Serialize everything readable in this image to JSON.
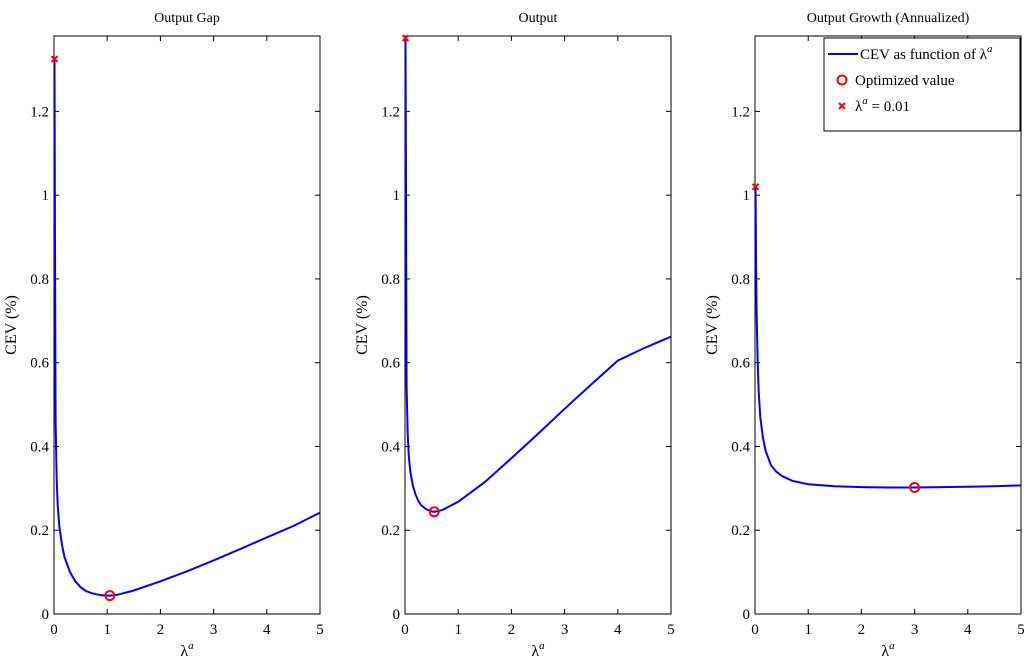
{
  "chart_data": [
    {
      "type": "line",
      "title": "Output Gap",
      "xlabel": "λ",
      "xlabel_sup": "a",
      "ylabel": "CEV (%)",
      "xlim": [
        0,
        5
      ],
      "ylim": [
        0,
        1.38
      ],
      "xticks": [
        "0",
        "1",
        "2",
        "3",
        "4",
        "5"
      ],
      "yticks": [
        "0",
        "0.2",
        "0.4",
        "0.6",
        "0.8",
        "1",
        "1.2"
      ],
      "grid": false,
      "series": [
        {
          "kind": "curve",
          "x": [
            0.01,
            0.02,
            0.03,
            0.05,
            0.07,
            0.1,
            0.15,
            0.2,
            0.3,
            0.4,
            0.5,
            0.6,
            0.7,
            0.8,
            0.9,
            1.0,
            1.05,
            1.2,
            1.5,
            2.0,
            2.5,
            3.0,
            3.5,
            4.0,
            4.5,
            5.0
          ],
          "y": [
            1.325,
            0.8,
            0.46,
            0.32,
            0.26,
            0.21,
            0.165,
            0.135,
            0.1,
            0.078,
            0.064,
            0.055,
            0.05,
            0.047,
            0.045,
            0.044,
            0.044,
            0.046,
            0.056,
            0.078,
            0.102,
            0.128,
            0.155,
            0.183,
            0.21,
            0.242
          ]
        }
      ],
      "markers": [
        {
          "kind": "circle",
          "x": 1.05,
          "y": 0.044
        },
        {
          "kind": "x",
          "x": 0.01,
          "y": 1.325
        }
      ]
    },
    {
      "type": "line",
      "title": "Output",
      "xlabel": "λ",
      "xlabel_sup": "a",
      "ylabel": "CEV (%)",
      "xlim": [
        0,
        5
      ],
      "ylim": [
        0,
        1.38
      ],
      "xticks": [
        "0",
        "1",
        "2",
        "3",
        "4",
        "5"
      ],
      "yticks": [
        "0",
        "0.2",
        "0.4",
        "0.6",
        "0.8",
        "1",
        "1.2"
      ],
      "grid": false,
      "series": [
        {
          "kind": "curve",
          "x": [
            0.01,
            0.02,
            0.03,
            0.05,
            0.07,
            0.1,
            0.15,
            0.2,
            0.25,
            0.3,
            0.4,
            0.5,
            0.55,
            0.7,
            1.0,
            1.5,
            2.0,
            2.5,
            3.0,
            3.5,
            4.0,
            4.5,
            5.0
          ],
          "y": [
            1.375,
            0.95,
            0.54,
            0.43,
            0.38,
            0.34,
            0.305,
            0.285,
            0.27,
            0.26,
            0.25,
            0.245,
            0.244,
            0.248,
            0.268,
            0.315,
            0.372,
            0.43,
            0.49,
            0.548,
            0.605,
            0.635,
            0.662
          ]
        }
      ],
      "markers": [
        {
          "kind": "circle",
          "x": 0.55,
          "y": 0.244
        },
        {
          "kind": "x",
          "x": 0.01,
          "y": 1.375
        }
      ]
    },
    {
      "type": "line",
      "title": "Output Growth (Annualized)",
      "xlabel": "λ",
      "xlabel_sup": "a",
      "ylabel": "CEV (%)",
      "xlim": [
        0,
        5
      ],
      "ylim": [
        0,
        1.38
      ],
      "xticks": [
        "0",
        "1",
        "2",
        "3",
        "4",
        "5"
      ],
      "yticks": [
        "0",
        "0.2",
        "0.4",
        "0.6",
        "0.8",
        "1",
        "1.2"
      ],
      "grid": false,
      "series": [
        {
          "kind": "curve",
          "x": [
            0.01,
            0.02,
            0.03,
            0.05,
            0.07,
            0.1,
            0.15,
            0.2,
            0.3,
            0.4,
            0.5,
            0.7,
            1.0,
            1.5,
            2.0,
            2.5,
            3.0,
            3.5,
            4.0,
            4.5,
            5.0
          ],
          "y": [
            1.02,
            0.84,
            0.72,
            0.6,
            0.53,
            0.47,
            0.42,
            0.39,
            0.355,
            0.34,
            0.33,
            0.318,
            0.31,
            0.305,
            0.303,
            0.302,
            0.302,
            0.303,
            0.304,
            0.305,
            0.307
          ]
        }
      ],
      "markers": [
        {
          "kind": "circle",
          "x": 3.0,
          "y": 0.302
        },
        {
          "kind": "x",
          "x": 0.01,
          "y": 1.02
        }
      ],
      "legend": {
        "placement": "top-right",
        "entries": [
          {
            "kind": "line",
            "label": "CEV as function of λ",
            "sup": "a"
          },
          {
            "kind": "circle",
            "label": "Optimized value"
          },
          {
            "kind": "x",
            "label": "λ",
            "sup": "a",
            "suffix": " = 0.01"
          }
        ]
      }
    }
  ],
  "colors": {
    "curve": "#0000ff",
    "marker": "#ff0000",
    "axes": "#000000"
  }
}
